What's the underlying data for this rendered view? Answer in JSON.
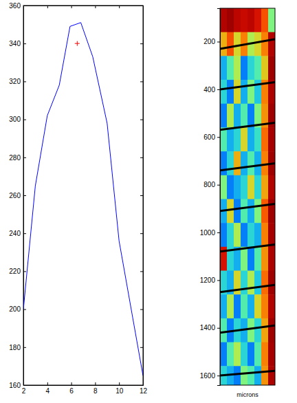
{
  "chart_data": [
    {
      "type": "line",
      "x": [
        2,
        3,
        4,
        5,
        5.9,
        6.8,
        7.8,
        9,
        10,
        12
      ],
      "series": [
        {
          "values": [
            200,
            265,
            302,
            318,
            349,
            351,
            333,
            298,
            236,
            165
          ],
          "color": "#0000ff"
        },
        {
          "type": "scatter",
          "x": [
            6.5
          ],
          "values": [
            340
          ],
          "color": "#ff0000",
          "marker": "plus"
        }
      ],
      "xlim": [
        2,
        12
      ],
      "xticks": [
        2,
        4,
        6,
        8,
        10,
        12
      ],
      "ylim": [
        160,
        360
      ],
      "yticks": [
        160,
        180,
        200,
        220,
        240,
        260,
        280,
        300,
        320,
        340,
        360
      ]
    },
    {
      "type": "heatmap",
      "xlabel": "microns",
      "ylim": [
        60,
        1640
      ],
      "yticks": [
        200,
        400,
        600,
        800,
        1000,
        1200,
        1400,
        1600
      ],
      "y_edges": [
        60,
        160,
        260,
        360,
        460,
        560,
        660,
        760,
        860,
        960,
        1060,
        1160,
        1260,
        1360,
        1460,
        1560,
        1640
      ],
      "clim": [
        0,
        1
      ],
      "cells": [
        [
          0.92,
          0.95,
          0.9,
          0.88,
          0.9,
          0.85,
          0.75,
          0.5
        ],
        [
          0.65,
          0.75,
          0.6,
          0.7,
          0.55,
          0.6,
          0.7,
          0.92
        ],
        [
          0.35,
          0.45,
          0.55,
          0.3,
          0.4,
          0.45,
          0.62,
          0.95
        ],
        [
          0.4,
          0.3,
          0.6,
          0.35,
          0.5,
          0.38,
          0.7,
          0.93
        ],
        [
          0.3,
          0.55,
          0.35,
          0.45,
          0.3,
          0.5,
          0.68,
          0.95
        ],
        [
          0.45,
          0.35,
          0.4,
          0.6,
          0.35,
          0.42,
          0.72,
          0.94
        ],
        [
          0.3,
          0.4,
          0.65,
          0.35,
          0.45,
          0.35,
          0.7,
          0.95
        ],
        [
          0.5,
          0.3,
          0.35,
          0.4,
          0.6,
          0.4,
          0.66,
          0.92
        ],
        [
          0.35,
          0.6,
          0.3,
          0.45,
          0.35,
          0.5,
          0.74,
          0.95
        ],
        [
          0.3,
          0.4,
          0.55,
          0.3,
          0.4,
          0.35,
          0.7,
          0.94
        ],
        [
          0.85,
          0.4,
          0.35,
          0.5,
          0.3,
          0.45,
          0.68,
          0.93
        ],
        [
          0.4,
          0.35,
          0.6,
          0.4,
          0.55,
          0.38,
          0.72,
          0.95
        ],
        [
          0.35,
          0.55,
          0.3,
          0.45,
          0.35,
          0.6,
          0.7,
          0.92
        ],
        [
          0.45,
          0.3,
          0.4,
          0.35,
          0.5,
          0.4,
          0.66,
          0.95
        ],
        [
          0.3,
          0.45,
          0.55,
          0.4,
          0.3,
          0.45,
          0.7,
          0.94
        ],
        [
          0.4,
          0.35,
          0.3,
          0.5,
          0.45,
          0.35,
          0.68,
          0.93
        ]
      ],
      "boundaries": [
        [
          230,
          190
        ],
        [
          400,
          370
        ],
        [
          570,
          540
        ],
        [
          740,
          710
        ],
        [
          910,
          880
        ],
        [
          1080,
          1050
        ],
        [
          1250,
          1220
        ],
        [
          1420,
          1390
        ],
        [
          1600,
          1580
        ]
      ]
    }
  ]
}
